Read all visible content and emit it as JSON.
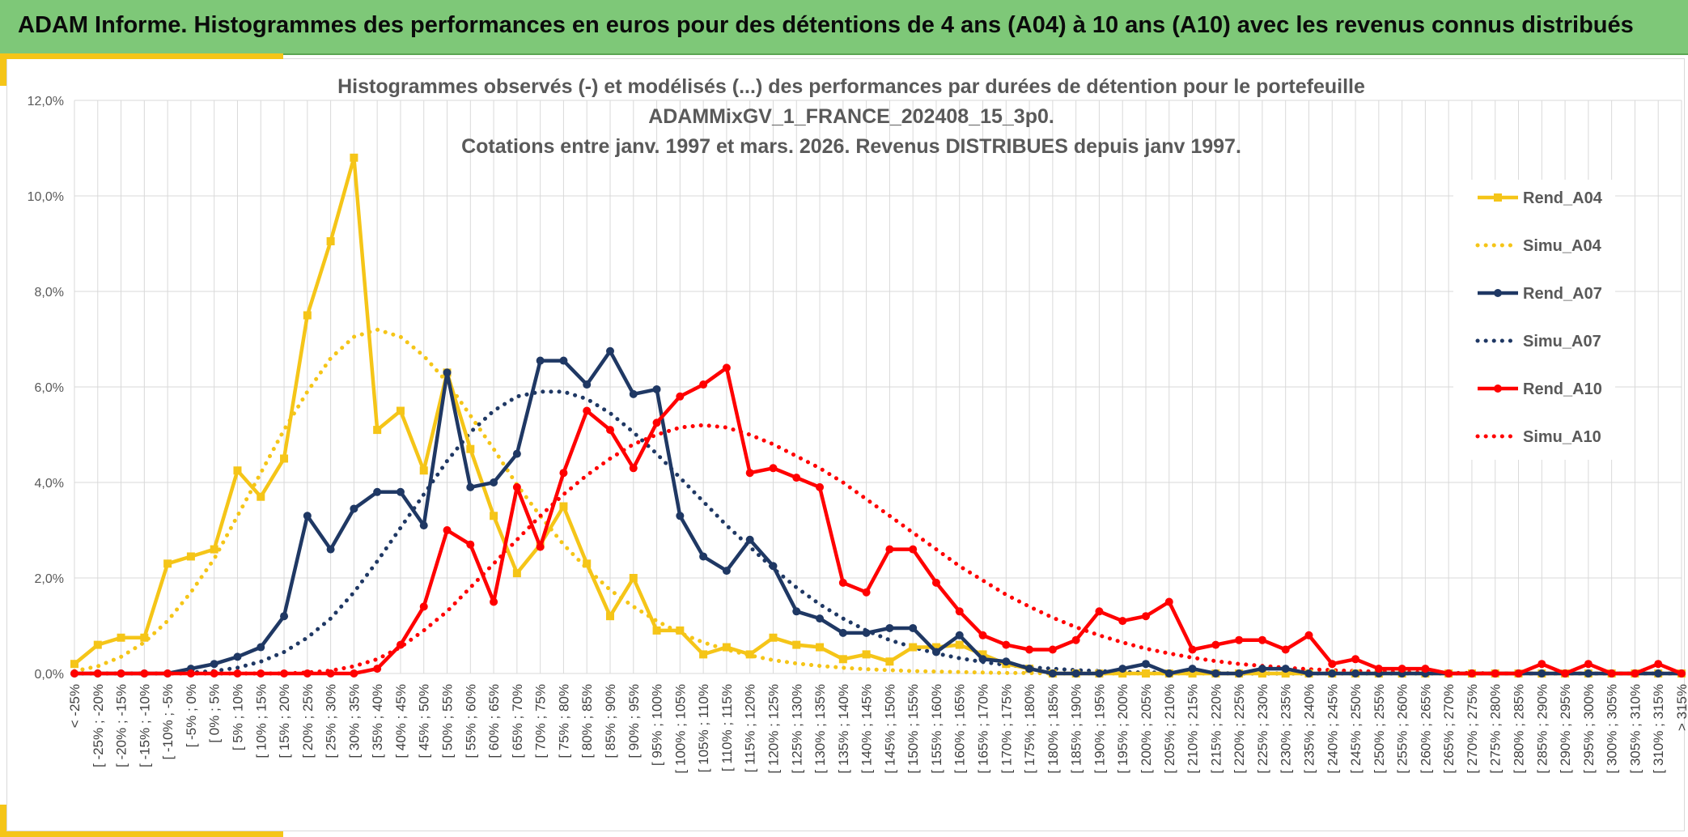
{
  "banner": {
    "title": "ADAM Informe. Histogrammes des performances en euros pour des détentions de 4 ans (A04) à 10 ans (A10) avec les revenus connus distribués"
  },
  "colors": {
    "banner_bg": "#7ec878",
    "accent": "#f5c518",
    "A04": "#f5c518",
    "A07": "#1f3864",
    "A10": "#ff0000",
    "grid": "#d9d9d9"
  },
  "chart_data": {
    "type": "line",
    "title_lines": [
      "Histogrammes observés (-) et modélisés (...) des performances par durées de détention pour le portefeuille",
      "ADAMMixGV_1_FRANCE_202408_15_3p0.",
      "Cotations entre janv. 1997 et mars. 2026. Revenus DISTRIBUES depuis janv 1997."
    ],
    "xlabel": "",
    "ylabel": "",
    "ylim": [
      0,
      12
    ],
    "y_ticks": [
      "0,0%",
      "2,0%",
      "4,0%",
      "6,0%",
      "8,0%",
      "10,0%",
      "12,0%"
    ],
    "y_unit": "%",
    "grid": true,
    "legend_position": "right",
    "categories": [
      "< -25%",
      "[ -25% ; -20%",
      "[ -20% ; -15%",
      "[ -15% ; -10%",
      "[ -10% ; -5%",
      "[ -5% ; 0%",
      "[ 0% ; 5%",
      "[ 5% ; 10%",
      "[ 10% ; 15%",
      "[ 15% ; 20%",
      "[ 20% ; 25%",
      "[ 25% ; 30%",
      "[ 30% ; 35%",
      "[ 35% ; 40%",
      "[ 40% ; 45%",
      "[ 45% ; 50%",
      "[ 50% ; 55%",
      "[ 55% ; 60%",
      "[ 60% ; 65%",
      "[ 65% ; 70%",
      "[ 70% ; 75%",
      "[ 75% ; 80%",
      "[ 80% ; 85%",
      "[ 85% ; 90%",
      "[ 90% ; 95%",
      "[ 95% ; 100%",
      "[ 100% ; 105%",
      "[ 105% ; 110%",
      "[ 110% ; 115%",
      "[ 115% ; 120%",
      "[ 120% ; 125%",
      "[ 125% ; 130%",
      "[ 130% ; 135%",
      "[ 135% ; 140%",
      "[ 140% ; 145%",
      "[ 145% ; 150%",
      "[ 150% ; 155%",
      "[ 155% ; 160%",
      "[ 160% ; 165%",
      "[ 165% ; 170%",
      "[ 170% ; 175%",
      "[ 175% ; 180%",
      "[ 180% ; 185%",
      "[ 185% ; 190%",
      "[ 190% ; 195%",
      "[ 195% ; 200%",
      "[ 200% ; 205%",
      "[ 205% ; 210%",
      "[ 210% ; 215%",
      "[ 215% ; 220%",
      "[ 220% ; 225%",
      "[ 225% ; 230%",
      "[ 230% ; 235%",
      "[ 235% ; 240%",
      "[ 240% ; 245%",
      "[ 245% ; 250%",
      "[ 250% ; 255%",
      "[ 255% ; 260%",
      "[ 260% ; 265%",
      "[ 265% ; 270%",
      "[ 270% ; 275%",
      "[ 275% ; 280%",
      "[ 280% ; 285%",
      "[ 285% ; 290%",
      "[ 290% ; 295%",
      "[ 295% ; 300%",
      "[ 300% ; 305%",
      "[ 305% ; 310%",
      "[ 310% ; 315%",
      "> 315%"
    ],
    "series": [
      {
        "name": "Rend_A04",
        "style": "solid",
        "marker": "square",
        "color": "#f5c518",
        "values": [
          0.2,
          0.6,
          0.75,
          0.75,
          2.3,
          2.45,
          2.6,
          4.25,
          3.7,
          4.5,
          7.5,
          9.05,
          10.8,
          5.1,
          5.5,
          4.25,
          6.3,
          4.7,
          3.3,
          2.1,
          2.7,
          3.5,
          2.3,
          1.2,
          2.0,
          0.9,
          0.9,
          0.4,
          0.55,
          0.4,
          0.75,
          0.6,
          0.55,
          0.3,
          0.4,
          0.25,
          0.55,
          0.55,
          0.6,
          0.4,
          0.2,
          0.1,
          0.0,
          0.0,
          0.0,
          0.0,
          0.0,
          0.0,
          0.0,
          0.0,
          0.0,
          0.0,
          0.0,
          0.0,
          0.0,
          0.0,
          0.0,
          0.0,
          0.0,
          0.0,
          0.0,
          0.0,
          0.0,
          0.0,
          0.0,
          0.0,
          0.0,
          0.0,
          0.0,
          0.0
        ]
      },
      {
        "name": "Simu_A04",
        "style": "dotted",
        "marker": "none",
        "color": "#f5c518",
        "values": [
          0.05,
          0.15,
          0.35,
          0.65,
          1.1,
          1.7,
          2.4,
          3.3,
          4.2,
          5.1,
          5.9,
          6.6,
          7.05,
          7.2,
          7.05,
          6.65,
          6.1,
          5.4,
          4.7,
          3.95,
          3.3,
          2.7,
          2.2,
          1.75,
          1.4,
          1.1,
          0.85,
          0.65,
          0.5,
          0.38,
          0.28,
          0.21,
          0.16,
          0.12,
          0.09,
          0.07,
          0.05,
          0.04,
          0.03,
          0.02,
          0.01,
          0.01,
          0.0,
          0.0,
          0.0,
          0.0,
          0.0,
          0.0,
          0.0,
          0.0,
          0.0,
          0.0,
          0.0,
          0.0,
          0.0,
          0.0,
          0.0,
          0.0,
          0.0,
          0.0,
          0.0,
          0.0,
          0.0,
          0.0,
          0.0,
          0.0,
          0.0,
          0.0,
          0.0,
          0.0
        ]
      },
      {
        "name": "Rend_A07",
        "style": "solid",
        "marker": "circle",
        "color": "#1f3864",
        "values": [
          0.0,
          0.0,
          0.0,
          0.0,
          0.0,
          0.1,
          0.2,
          0.35,
          0.55,
          1.2,
          3.3,
          2.6,
          3.45,
          3.8,
          3.8,
          3.1,
          6.3,
          3.9,
          4.0,
          4.6,
          6.55,
          6.55,
          6.05,
          6.75,
          5.85,
          5.95,
          3.3,
          2.45,
          2.15,
          2.8,
          2.25,
          1.3,
          1.15,
          0.85,
          0.85,
          0.95,
          0.95,
          0.45,
          0.8,
          0.3,
          0.25,
          0.1,
          0.0,
          0.0,
          0.0,
          0.1,
          0.2,
          0.0,
          0.1,
          0.0,
          0.0,
          0.1,
          0.1,
          0.0,
          0.0,
          0.0,
          0.0,
          0.0,
          0.0,
          0.0,
          0.0,
          0.0,
          0.0,
          0.0,
          0.0,
          0.0,
          0.0,
          0.0,
          0.0,
          0.0
        ]
      },
      {
        "name": "Simu_A07",
        "style": "dotted",
        "marker": "none",
        "color": "#1f3864",
        "values": [
          0.0,
          0.0,
          0.0,
          0.0,
          0.0,
          0.02,
          0.05,
          0.12,
          0.25,
          0.45,
          0.75,
          1.15,
          1.7,
          2.35,
          3.05,
          3.75,
          4.45,
          5.05,
          5.5,
          5.8,
          5.9,
          5.9,
          5.75,
          5.45,
          5.05,
          4.6,
          4.1,
          3.6,
          3.1,
          2.65,
          2.2,
          1.8,
          1.45,
          1.15,
          0.9,
          0.7,
          0.55,
          0.42,
          0.32,
          0.24,
          0.18,
          0.13,
          0.1,
          0.07,
          0.05,
          0.03,
          0.02,
          0.02,
          0.01,
          0.01,
          0.0,
          0.0,
          0.0,
          0.0,
          0.0,
          0.0,
          0.0,
          0.0,
          0.0,
          0.0,
          0.0,
          0.0,
          0.0,
          0.0,
          0.0,
          0.0,
          0.0,
          0.0,
          0.0,
          0.0
        ]
      },
      {
        "name": "Rend_A10",
        "style": "solid",
        "marker": "circle",
        "color": "#ff0000",
        "values": [
          0.0,
          0.0,
          0.0,
          0.0,
          0.0,
          0.0,
          0.0,
          0.0,
          0.0,
          0.0,
          0.0,
          0.0,
          0.0,
          0.1,
          0.6,
          1.4,
          3.0,
          2.7,
          1.5,
          3.9,
          2.65,
          4.2,
          5.5,
          5.1,
          4.3,
          5.25,
          5.8,
          6.05,
          6.4,
          4.2,
          4.3,
          4.1,
          3.9,
          1.9,
          1.7,
          2.6,
          2.6,
          1.9,
          1.3,
          0.8,
          0.6,
          0.5,
          0.5,
          0.7,
          1.3,
          1.1,
          1.2,
          1.5,
          0.5,
          0.6,
          0.7,
          0.7,
          0.5,
          0.8,
          0.2,
          0.3,
          0.1,
          0.1,
          0.1,
          0.0,
          0.0,
          0.0,
          0.0,
          0.2,
          0.0,
          0.2,
          0.0,
          0.0,
          0.2,
          0.0
        ]
      },
      {
        "name": "Simu_A10",
        "style": "dotted",
        "marker": "none",
        "color": "#ff0000",
        "values": [
          0.0,
          0.0,
          0.0,
          0.0,
          0.0,
          0.0,
          0.0,
          0.0,
          0.0,
          0.0,
          0.02,
          0.06,
          0.15,
          0.3,
          0.55,
          0.9,
          1.3,
          1.8,
          2.3,
          2.8,
          3.3,
          3.75,
          4.15,
          4.5,
          4.8,
          5.0,
          5.15,
          5.2,
          5.15,
          5.0,
          4.8,
          4.55,
          4.3,
          4.0,
          3.65,
          3.3,
          2.95,
          2.6,
          2.25,
          1.95,
          1.65,
          1.4,
          1.17,
          0.97,
          0.8,
          0.65,
          0.52,
          0.42,
          0.33,
          0.26,
          0.2,
          0.16,
          0.12,
          0.09,
          0.07,
          0.05,
          0.04,
          0.03,
          0.02,
          0.01,
          0.01,
          0.0,
          0.0,
          0.0,
          0.0,
          0.0,
          0.0,
          0.0,
          0.0,
          0.0
        ]
      }
    ]
  }
}
